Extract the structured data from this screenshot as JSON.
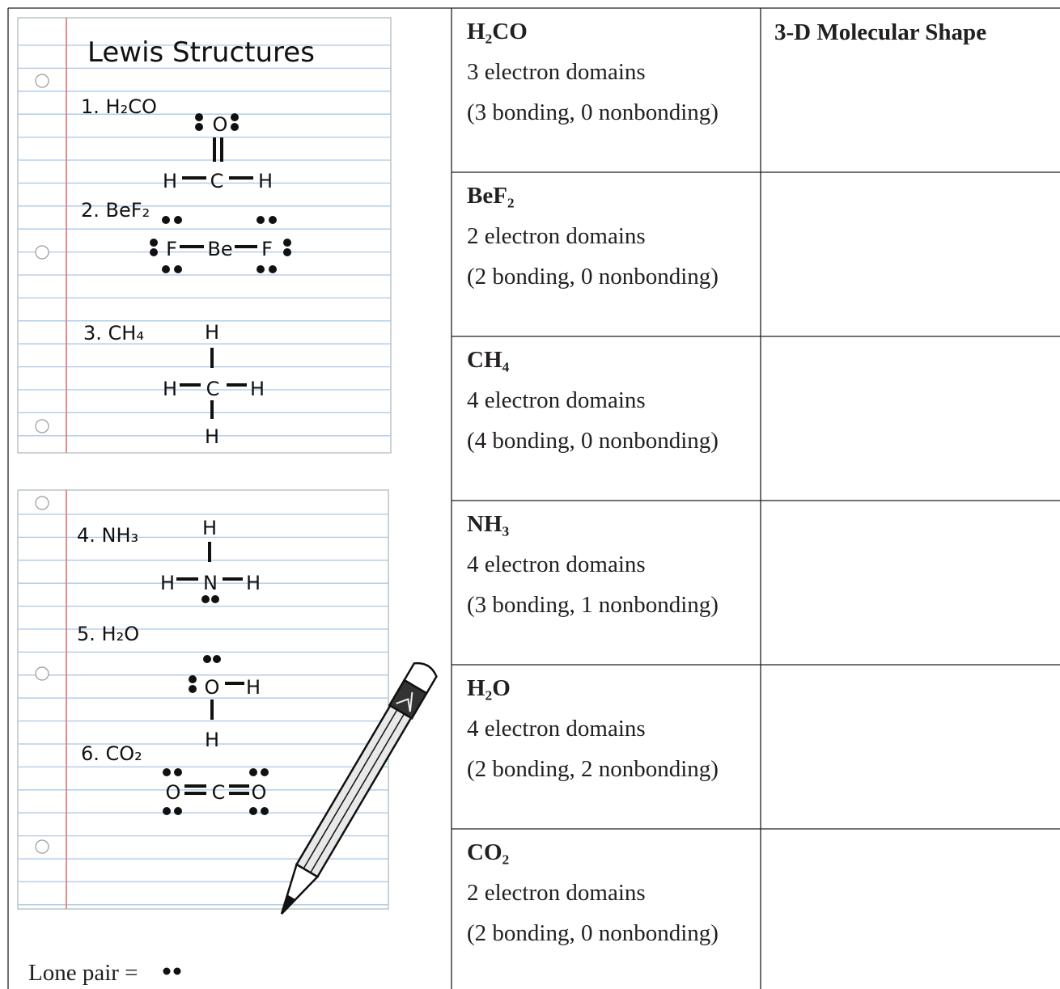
{
  "notebook": {
    "title": "Lewis Structures",
    "structures": [
      {
        "label": "1. H₂CO",
        "atoms": [
          "O",
          "H",
          "C",
          "H"
        ]
      },
      {
        "label": "2. BeF₂",
        "atoms": [
          "F",
          "Be",
          "F"
        ]
      },
      {
        "label": "3. CH₄",
        "atoms": [
          "H",
          "H",
          "C",
          "H",
          "H"
        ]
      },
      {
        "label": "4. NH₃",
        "atoms": [
          "H",
          "H",
          "N",
          "H"
        ]
      },
      {
        "label": "5. H₂O",
        "atoms": [
          "O",
          "H",
          "H"
        ]
      },
      {
        "label": "6. CO₂",
        "atoms": [
          "O",
          "C",
          "O"
        ]
      }
    ]
  },
  "legend": {
    "label": "Lone pair ="
  },
  "table": {
    "header": "3-D Molecular Shape",
    "rows": [
      {
        "formula": "H₂CO",
        "domains": "3 electron domains",
        "detail": "(3 bonding, 0 nonbonding)"
      },
      {
        "formula": "BeF₂",
        "domains": "2 electron domains",
        "detail": "(2 bonding, 0 nonbonding)"
      },
      {
        "formula": "CH₄",
        "domains": "4 electron domains",
        "detail": "(4 bonding, 0 nonbonding)"
      },
      {
        "formula": "NH₃",
        "domains": "4 electron domains",
        "detail": "(3 bonding, 1 nonbonding)"
      },
      {
        "formula": "H₂O",
        "domains": "4 electron domains",
        "detail": "(2 bonding, 2 nonbonding)"
      },
      {
        "formula": "CO₂",
        "domains": "2 electron domains",
        "detail": "(2 bonding, 0 nonbonding)"
      }
    ]
  }
}
